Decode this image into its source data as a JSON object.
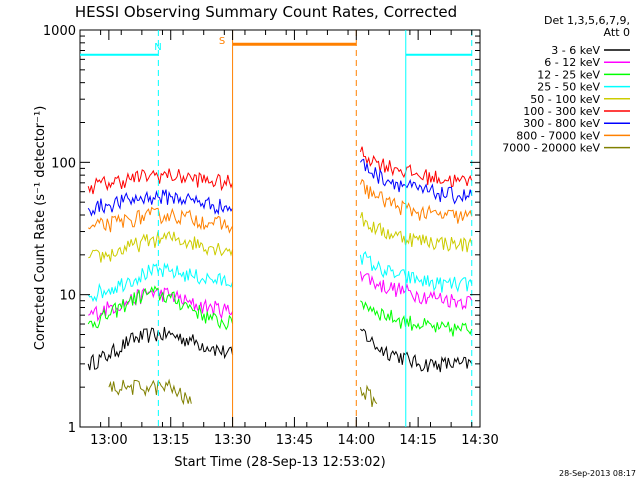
{
  "chart_data": {
    "type": "line",
    "title": "HESSI Observing Summary Count Rates, Corrected",
    "ylabel": "Corrected Count Rate (s⁻¹ detector⁻¹)",
    "xlabel": "Start Time (28-Sep-13 12:53:02)",
    "stamp": "28-Sep-2013 08:17",
    "yscale": "log",
    "ylim": [
      1,
      1000
    ],
    "xlim": [
      "12:53",
      "14:30"
    ],
    "ytick_labels": [
      "1",
      "10",
      "100",
      "1000"
    ],
    "xtick_labels": [
      "13:00",
      "13:15",
      "13:30",
      "13:45",
      "14:00",
      "14:15",
      "14:30"
    ],
    "legend_header": [
      "Det 1,3,5,6,7,9,",
      "Att 0"
    ],
    "legend_position": "top-right, outside plot",
    "gap": {
      "start": "13:30",
      "end": "14:00"
    },
    "series": [
      {
        "name": "3 - 6 keV",
        "color": "#000000",
        "x": [
          "12:55",
          "13:00",
          "13:05",
          "13:10",
          "13:15",
          "13:20",
          "13:25",
          "13:30",
          "14:01",
          "14:05",
          "14:10",
          "14:15",
          "14:20",
          "14:25",
          "14:28"
        ],
        "values": [
          3,
          3.5,
          4.5,
          5,
          5,
          4.5,
          4,
          3.5,
          5.5,
          4,
          3.5,
          3,
          3,
          3,
          3
        ]
      },
      {
        "name": "6 - 12 keV",
        "color": "#ff00ff",
        "x": [
          "12:55",
          "13:00",
          "13:05",
          "13:10",
          "13:15",
          "13:20",
          "13:25",
          "13:30",
          "14:01",
          "14:05",
          "14:10",
          "14:15",
          "14:20",
          "14:25",
          "14:28"
        ],
        "values": [
          7,
          8,
          9,
          10.5,
          10,
          8.5,
          8,
          7.5,
          15,
          12,
          11,
          10,
          9.5,
          9,
          9
        ]
      },
      {
        "name": "12 - 25 keV",
        "color": "#00ff00",
        "x": [
          "12:55",
          "13:00",
          "13:05",
          "13:10",
          "13:15",
          "13:20",
          "13:25",
          "13:30",
          "14:01",
          "14:05",
          "14:10",
          "14:15",
          "14:20",
          "14:25",
          "14:28"
        ],
        "values": [
          6,
          7,
          9,
          10.5,
          9.5,
          8,
          6.5,
          6,
          9,
          7.5,
          6.5,
          6,
          5.5,
          5.5,
          5.5
        ]
      },
      {
        "name": "25 - 50 keV",
        "color": "#00ffff",
        "x": [
          "12:55",
          "13:00",
          "13:05",
          "13:10",
          "13:15",
          "13:20",
          "13:25",
          "13:30",
          "14:01",
          "14:05",
          "14:10",
          "14:15",
          "14:20",
          "14:25",
          "14:28"
        ],
        "values": [
          10,
          11,
          13,
          15,
          15,
          14,
          13,
          12.5,
          20,
          16,
          14,
          13,
          12,
          12,
          12
        ]
      },
      {
        "name": "50 - 100 keV",
        "color": "#cccc00",
        "x": [
          "12:55",
          "13:00",
          "13:05",
          "13:10",
          "13:15",
          "13:20",
          "13:25",
          "13:30",
          "14:01",
          "14:05",
          "14:10",
          "14:15",
          "14:20",
          "14:25",
          "14:28"
        ],
        "values": [
          19,
          20,
          23,
          26,
          27,
          25,
          23,
          22,
          38,
          31,
          28,
          26,
          25,
          24,
          24
        ]
      },
      {
        "name": "100 - 300 keV",
        "color": "#ff0000",
        "x": [
          "12:55",
          "13:00",
          "13:05",
          "13:10",
          "13:15",
          "13:20",
          "13:25",
          "13:30",
          "14:01",
          "14:05",
          "14:10",
          "14:15",
          "14:20",
          "14:25",
          "14:28"
        ],
        "values": [
          66,
          70,
          75,
          80,
          80,
          76,
          72,
          70,
          120,
          100,
          90,
          80,
          76,
          72,
          72
        ]
      },
      {
        "name": "300 - 800 keV",
        "color": "#0000ff",
        "x": [
          "12:55",
          "13:00",
          "13:05",
          "13:10",
          "13:15",
          "13:20",
          "13:25",
          "13:30",
          "14:01",
          "14:05",
          "14:10",
          "14:15",
          "14:20",
          "14:25",
          "14:28"
        ],
        "values": [
          45,
          48,
          52,
          55,
          55,
          52,
          48,
          45,
          100,
          80,
          70,
          62,
          58,
          56,
          56
        ]
      },
      {
        "name": "800 - 7000 keV",
        "color": "#ff8000",
        "x": [
          "12:55",
          "13:00",
          "13:05",
          "13:10",
          "13:15",
          "13:20",
          "13:25",
          "13:30",
          "14:01",
          "14:05",
          "14:10",
          "14:15",
          "14:20",
          "14:25",
          "14:28"
        ],
        "values": [
          32,
          34,
          37,
          40,
          40,
          38,
          35,
          33,
          68,
          55,
          47,
          42,
          40,
          39,
          39
        ]
      },
      {
        "name": "7000 - 20000 keV",
        "color": "#808000",
        "x": [
          "13:00",
          "13:05",
          "13:10",
          "13:15",
          "13:20",
          "14:01",
          "14:05"
        ],
        "values": [
          2,
          2,
          2,
          2,
          1.5,
          2,
          1.5
        ]
      }
    ],
    "flags": [
      {
        "label": "",
        "color": "#00ffff",
        "start": "12:53",
        "end": "13:12",
        "value": 650
      },
      {
        "label": "N",
        "color": "#00ffff",
        "start": "",
        "end": "",
        "value": ""
      },
      {
        "label": "S",
        "color": "#ff8000",
        "start": "13:30",
        "end": "14:00",
        "value": 780
      },
      {
        "label": "",
        "color": "#00ffff",
        "start": "14:12",
        "end": "14:28",
        "value": 650
      }
    ],
    "markers": [
      {
        "at": "13:12",
        "color": "#00ffff",
        "style": "dashed"
      },
      {
        "at": "13:30",
        "color": "#ff8000",
        "style": "solid"
      },
      {
        "at": "14:00",
        "color": "#ff8000",
        "style": "dashed"
      },
      {
        "at": "14:12",
        "color": "#00ffff",
        "style": "solid"
      },
      {
        "at": "14:28",
        "color": "#00ffff",
        "style": "dashed"
      }
    ]
  }
}
